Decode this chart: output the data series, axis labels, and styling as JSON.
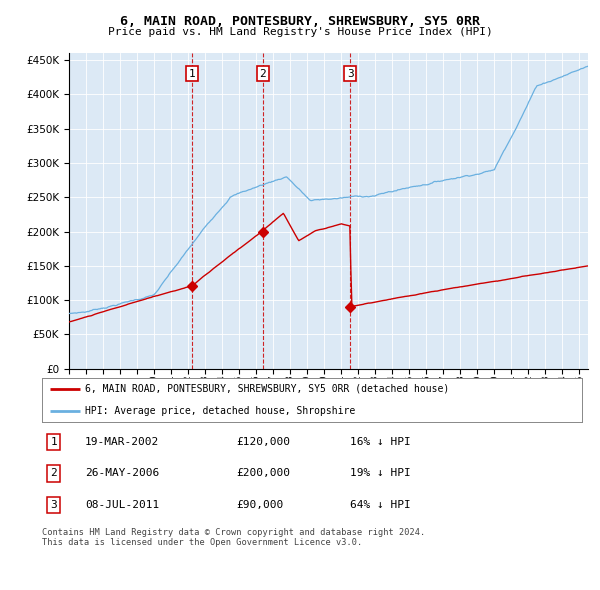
{
  "title": "6, MAIN ROAD, PONTESBURY, SHREWSBURY, SY5 0RR",
  "subtitle": "Price paid vs. HM Land Registry's House Price Index (HPI)",
  "plot_bg_color": "#dce9f5",
  "hpi_color": "#6ab0e0",
  "price_color": "#cc0000",
  "dashed_line_color": "#cc0000",
  "transactions": [
    {
      "num": 1,
      "date_x": 2002.21,
      "price": 120000,
      "label": "19-MAR-2002",
      "price_str": "£120,000",
      "pct": "16% ↓ HPI"
    },
    {
      "num": 2,
      "date_x": 2006.4,
      "price": 200000,
      "label": "26-MAY-2006",
      "price_str": "£200,000",
      "pct": "19% ↓ HPI"
    },
    {
      "num": 3,
      "date_x": 2011.52,
      "price": 90000,
      "label": "08-JUL-2011",
      "price_str": "£90,000",
      "pct": "64% ↓ HPI"
    }
  ],
  "legend_label_red": "6, MAIN ROAD, PONTESBURY, SHREWSBURY, SY5 0RR (detached house)",
  "legend_label_blue": "HPI: Average price, detached house, Shropshire",
  "footer": "Contains HM Land Registry data © Crown copyright and database right 2024.\nThis data is licensed under the Open Government Licence v3.0.",
  "ylim": [
    0,
    460000
  ],
  "xlim_start": 1995.0,
  "xlim_end": 2025.5,
  "n_points": 500
}
